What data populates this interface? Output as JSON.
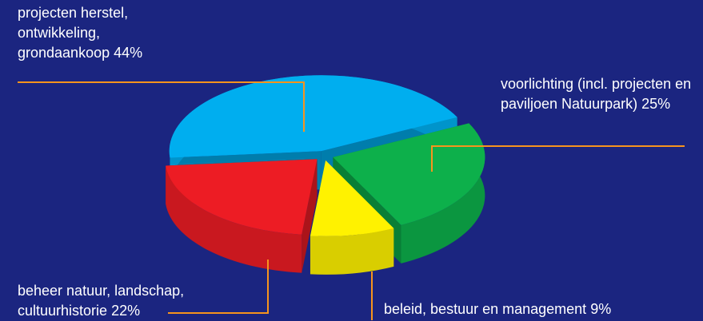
{
  "chart_data": {
    "type": "pie3d",
    "categories": [
      "projecten herstel, ontwikkeling, grondaankoop",
      "voorlichting (incl. projecten en paviljoen Natuurpark)",
      "beleid, bestuur en management",
      "beheer natuur, landschap, cultuurhistorie"
    ],
    "values": [
      44,
      25,
      9,
      22
    ],
    "value_labels": [
      "44%",
      "25%",
      "9%",
      "22%"
    ],
    "colors": [
      "#00aeef",
      "#0db04b",
      "#fff200",
      "#ed1c24"
    ]
  }
}
